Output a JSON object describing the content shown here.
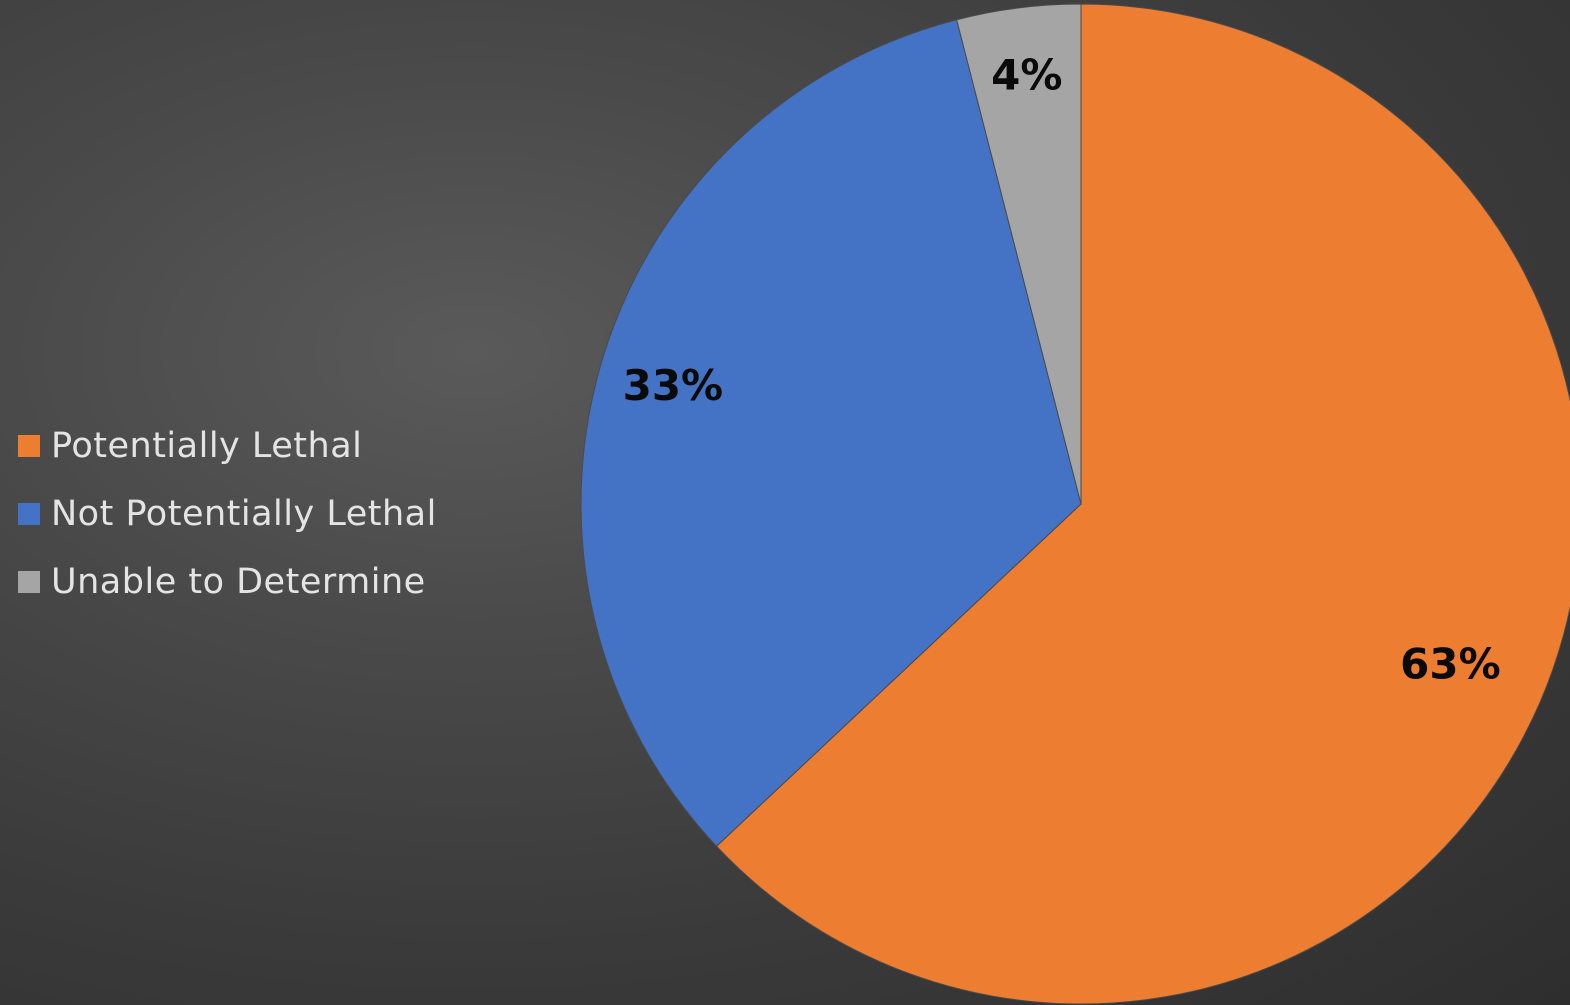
{
  "chart_data": {
    "type": "pie",
    "title": "",
    "slices": [
      {
        "label": "Potentially Lethal",
        "value": 63,
        "data_label": "63%",
        "color": "#ED7D31"
      },
      {
        "label": "Not Potentially Lethal",
        "value": 33,
        "data_label": "33%",
        "color": "#4472C4"
      },
      {
        "label": "Unable to Determine",
        "value": 4,
        "data_label": "4%",
        "color": "#A5A5A5"
      }
    ],
    "start_angle_deg": 0,
    "direction": "clockwise",
    "legend": {
      "position": "left",
      "entries": [
        "Potentially Lethal",
        "Not Potentially Lethal",
        "Unable to Determine"
      ]
    }
  }
}
